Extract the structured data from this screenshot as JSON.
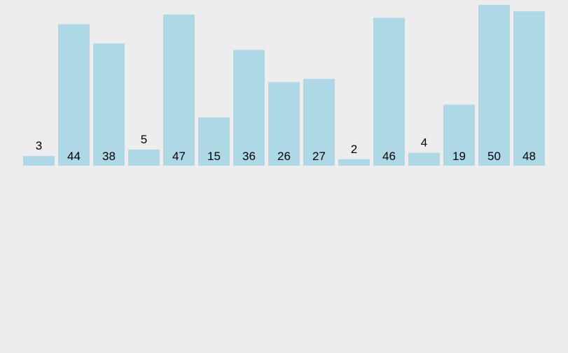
{
  "chart_data": {
    "type": "bar",
    "values": [
      3,
      44,
      38,
      5,
      47,
      15,
      36,
      26,
      27,
      2,
      46,
      4,
      19,
      50,
      48
    ],
    "data_labels": [
      "3",
      "44",
      "38",
      "5",
      "47",
      "15",
      "36",
      "26",
      "27",
      "2",
      "46",
      "4",
      "19",
      "50",
      "48"
    ],
    "ylim": [
      0,
      50
    ],
    "grid": false,
    "axes_visible": false,
    "bar_color": "#add8e6",
    "background_color": "#ededed"
  }
}
